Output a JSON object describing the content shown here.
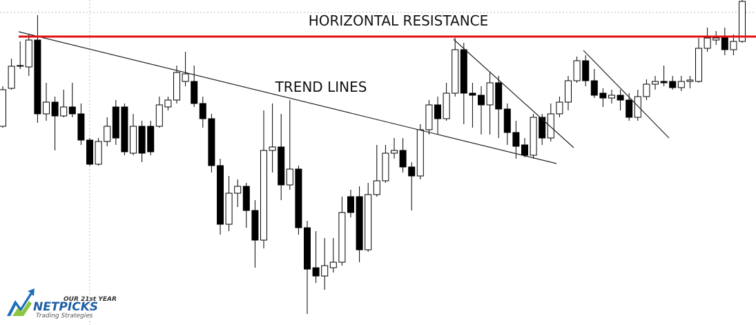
{
  "chart_data": {
    "type": "candlestick",
    "ylim": [
      0,
      471
    ],
    "up_color": "#ffffff",
    "down_color": "#000000",
    "outline_color": "#000000",
    "open": [
      288,
      343,
      375,
      374,
      413,
      306,
      323,
      303,
      316,
      306,
      268,
      233,
      266,
      316,
      316,
      249,
      288,
      288,
      288,
      316,
      326,
      353,
      353,
      321,
      299,
      231,
      146,
      191,
      201,
      166,
      123,
      253,
      258,
      203,
      226,
      141,
      83,
      71,
      83,
      91,
      186,
      186,
      109,
      189,
      209,
      249,
      253,
      229,
      216,
      283,
      319,
      299,
      336,
      399,
      336,
      333,
      319,
      351,
      313,
      279,
      261,
      246,
      301,
      271,
      306,
      323,
      354,
      383,
      354,
      336,
      329,
      333,
      326,
      301,
      331,
      349,
      353,
      353,
      344,
      353,
      353,
      401,
      413,
      416,
      399,
      411
    ],
    "high": [
      346,
      386,
      411,
      421,
      449,
      351,
      331,
      341,
      351,
      321,
      271,
      271,
      301,
      326,
      321,
      306,
      296,
      296,
      331,
      331,
      376,
      396,
      376,
      331,
      306,
      241,
      216,
      211,
      206,
      181,
      311,
      321,
      306,
      326,
      231,
      151,
      136,
      126,
      126,
      186,
      196,
      201,
      206,
      261,
      261,
      271,
      271,
      236,
      291,
      326,
      331,
      351,
      416,
      409,
      351,
      346,
      366,
      361,
      321,
      296,
      271,
      306,
      306,
      321,
      331,
      361,
      389,
      391,
      371,
      343,
      341,
      341,
      336,
      341,
      356,
      361,
      376,
      361,
      361,
      361,
      416,
      431,
      426,
      431,
      421,
      471
    ],
    "low": [
      286,
      341,
      371,
      361,
      293,
      296,
      253,
      301,
      301,
      261,
      231,
      231,
      259,
      261,
      246,
      246,
      236,
      246,
      286,
      311,
      321,
      346,
      316,
      286,
      221,
      131,
      136,
      171,
      141,
      83,
      111,
      221,
      181,
      196,
      131,
      16,
      61,
      51,
      76,
      86,
      156,
      91,
      106,
      186,
      206,
      241,
      221,
      166,
      211,
      276,
      276,
      296,
      331,
      291,
      286,
      276,
      276,
      271,
      261,
      241,
      243,
      241,
      261,
      266,
      301,
      311,
      351,
      346,
      329,
      316,
      321,
      311,
      296,
      296,
      326,
      341,
      346,
      341,
      339,
      343,
      351,
      396,
      406,
      391,
      391,
      409
    ],
    "close": [
      341,
      375,
      376,
      413,
      306,
      323,
      303,
      316,
      306,
      268,
      233,
      266,
      288,
      271,
      251,
      288,
      249,
      251,
      319,
      326,
      366,
      364,
      321,
      299,
      231,
      146,
      191,
      201,
      166,
      123,
      253,
      258,
      203,
      226,
      141,
      81,
      71,
      86,
      91,
      163,
      163,
      109,
      189,
      209,
      249,
      253,
      229,
      216,
      283,
      319,
      299,
      336,
      399,
      336,
      333,
      319,
      351,
      313,
      279,
      259,
      246,
      301,
      271,
      306,
      323,
      354,
      383,
      354,
      333,
      329,
      333,
      326,
      301,
      331,
      349,
      353,
      351,
      344,
      353,
      355,
      401,
      416,
      416,
      399,
      411,
      469
    ],
    "resistance": {
      "label": "HORIZONTAL RESISTANCE",
      "value": 418,
      "color": "#e01010"
    },
    "trend_label": "TREND LINES",
    "logo": {
      "tagline": "OUR 21st YEAR",
      "name": "NETPICKS",
      "subtitle": "Trading Strategies"
    }
  }
}
